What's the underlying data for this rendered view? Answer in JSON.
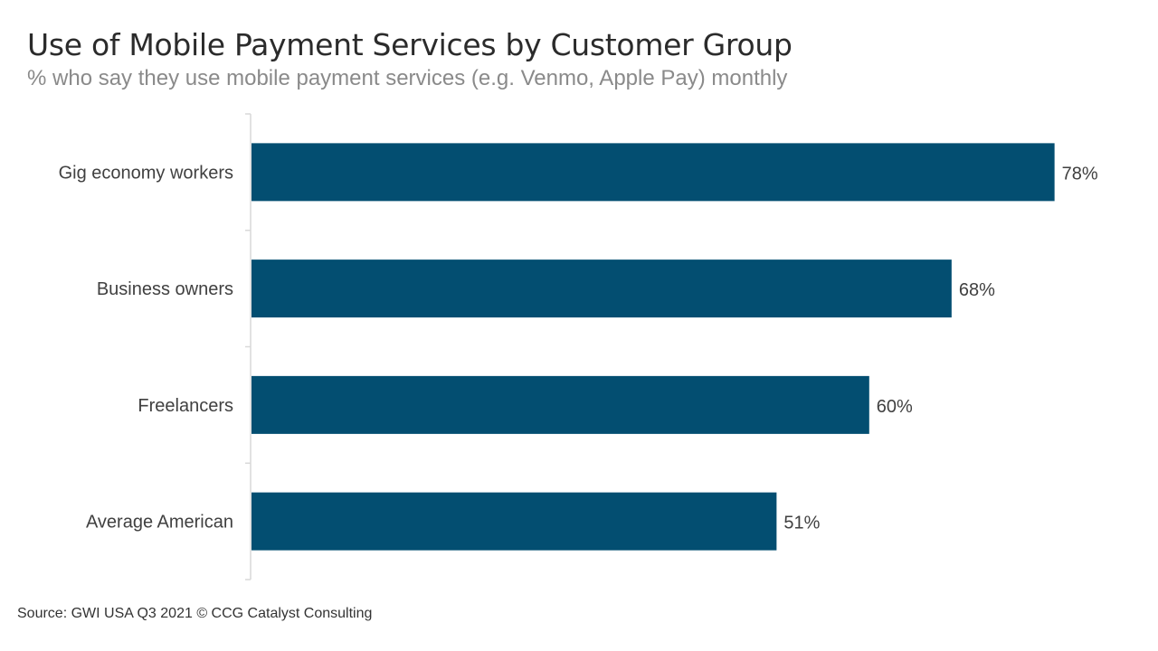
{
  "header": {
    "title": "Use of Mobile Payment Services by Customer Group",
    "subtitle": "% who say they use mobile payment services (e.g. Venmo, Apple Pay) monthly"
  },
  "footer": {
    "source": "Source: GWI USA Q3 2021  © CCG Catalyst Consulting"
  },
  "chart_data": {
    "type": "bar",
    "orientation": "horizontal",
    "title": "Use of Mobile Payment Services by Customer Group",
    "subtitle": "% who say they use mobile payment services (e.g. Venmo, Apple Pay) monthly",
    "categories": [
      "Gig economy workers",
      "Business owners",
      "Freelancers",
      "Average American"
    ],
    "values": [
      78,
      68,
      60,
      51
    ],
    "value_labels": [
      "78%",
      "68%",
      "60%",
      "51%"
    ],
    "xlim": [
      0,
      100
    ],
    "grid": false,
    "legend": "none",
    "bar_color": "#034e71",
    "axis_color": "#d9d9d9"
  }
}
